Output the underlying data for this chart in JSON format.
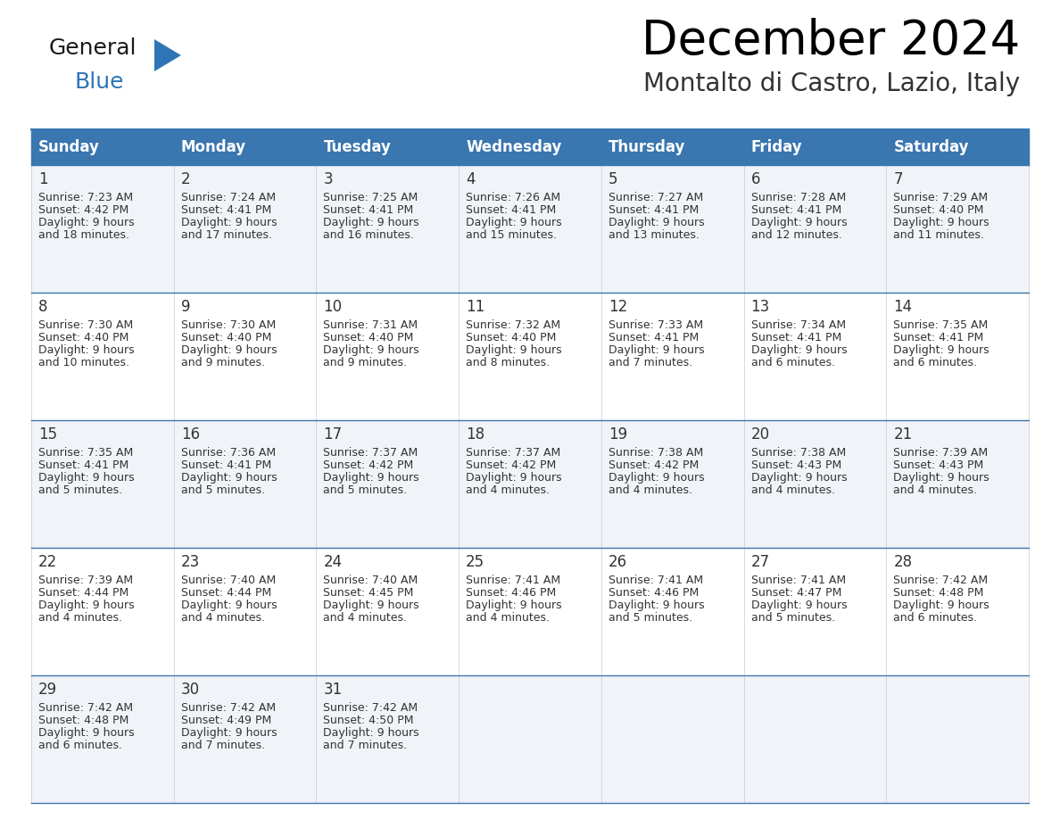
{
  "title": "December 2024",
  "subtitle": "Montalto di Castro, Lazio, Italy",
  "header_color": "#3A76B0",
  "header_text_color": "#FFFFFF",
  "border_color": "#3A76B0",
  "text_color": "#333333",
  "days_of_week": [
    "Sunday",
    "Monday",
    "Tuesday",
    "Wednesday",
    "Thursday",
    "Friday",
    "Saturday"
  ],
  "row_bg_colors": [
    "#F0F4F8",
    "#FFFFFF",
    "#F0F4F8",
    "#FFFFFF",
    "#F0F4F8"
  ],
  "calendar_data": [
    [
      {
        "day": 1,
        "sunrise": "7:23 AM",
        "sunset": "4:42 PM",
        "daylight": "9 hours and 18 minutes"
      },
      {
        "day": 2,
        "sunrise": "7:24 AM",
        "sunset": "4:41 PM",
        "daylight": "9 hours and 17 minutes"
      },
      {
        "day": 3,
        "sunrise": "7:25 AM",
        "sunset": "4:41 PM",
        "daylight": "9 hours and 16 minutes"
      },
      {
        "day": 4,
        "sunrise": "7:26 AM",
        "sunset": "4:41 PM",
        "daylight": "9 hours and 15 minutes"
      },
      {
        "day": 5,
        "sunrise": "7:27 AM",
        "sunset": "4:41 PM",
        "daylight": "9 hours and 13 minutes"
      },
      {
        "day": 6,
        "sunrise": "7:28 AM",
        "sunset": "4:41 PM",
        "daylight": "9 hours and 12 minutes"
      },
      {
        "day": 7,
        "sunrise": "7:29 AM",
        "sunset": "4:40 PM",
        "daylight": "9 hours and 11 minutes"
      }
    ],
    [
      {
        "day": 8,
        "sunrise": "7:30 AM",
        "sunset": "4:40 PM",
        "daylight": "9 hours and 10 minutes"
      },
      {
        "day": 9,
        "sunrise": "7:30 AM",
        "sunset": "4:40 PM",
        "daylight": "9 hours and 9 minutes"
      },
      {
        "day": 10,
        "sunrise": "7:31 AM",
        "sunset": "4:40 PM",
        "daylight": "9 hours and 9 minutes"
      },
      {
        "day": 11,
        "sunrise": "7:32 AM",
        "sunset": "4:40 PM",
        "daylight": "9 hours and 8 minutes"
      },
      {
        "day": 12,
        "sunrise": "7:33 AM",
        "sunset": "4:41 PM",
        "daylight": "9 hours and 7 minutes"
      },
      {
        "day": 13,
        "sunrise": "7:34 AM",
        "sunset": "4:41 PM",
        "daylight": "9 hours and 6 minutes"
      },
      {
        "day": 14,
        "sunrise": "7:35 AM",
        "sunset": "4:41 PM",
        "daylight": "9 hours and 6 minutes"
      }
    ],
    [
      {
        "day": 15,
        "sunrise": "7:35 AM",
        "sunset": "4:41 PM",
        "daylight": "9 hours and 5 minutes"
      },
      {
        "day": 16,
        "sunrise": "7:36 AM",
        "sunset": "4:41 PM",
        "daylight": "9 hours and 5 minutes"
      },
      {
        "day": 17,
        "sunrise": "7:37 AM",
        "sunset": "4:42 PM",
        "daylight": "9 hours and 5 minutes"
      },
      {
        "day": 18,
        "sunrise": "7:37 AM",
        "sunset": "4:42 PM",
        "daylight": "9 hours and 4 minutes"
      },
      {
        "day": 19,
        "sunrise": "7:38 AM",
        "sunset": "4:42 PM",
        "daylight": "9 hours and 4 minutes"
      },
      {
        "day": 20,
        "sunrise": "7:38 AM",
        "sunset": "4:43 PM",
        "daylight": "9 hours and 4 minutes"
      },
      {
        "day": 21,
        "sunrise": "7:39 AM",
        "sunset": "4:43 PM",
        "daylight": "9 hours and 4 minutes"
      }
    ],
    [
      {
        "day": 22,
        "sunrise": "7:39 AM",
        "sunset": "4:44 PM",
        "daylight": "9 hours and 4 minutes"
      },
      {
        "day": 23,
        "sunrise": "7:40 AM",
        "sunset": "4:44 PM",
        "daylight": "9 hours and 4 minutes"
      },
      {
        "day": 24,
        "sunrise": "7:40 AM",
        "sunset": "4:45 PM",
        "daylight": "9 hours and 4 minutes"
      },
      {
        "day": 25,
        "sunrise": "7:41 AM",
        "sunset": "4:46 PM",
        "daylight": "9 hours and 4 minutes"
      },
      {
        "day": 26,
        "sunrise": "7:41 AM",
        "sunset": "4:46 PM",
        "daylight": "9 hours and 5 minutes"
      },
      {
        "day": 27,
        "sunrise": "7:41 AM",
        "sunset": "4:47 PM",
        "daylight": "9 hours and 5 minutes"
      },
      {
        "day": 28,
        "sunrise": "7:42 AM",
        "sunset": "4:48 PM",
        "daylight": "9 hours and 6 minutes"
      }
    ],
    [
      {
        "day": 29,
        "sunrise": "7:42 AM",
        "sunset": "4:48 PM",
        "daylight": "9 hours and 6 minutes"
      },
      {
        "day": 30,
        "sunrise": "7:42 AM",
        "sunset": "4:49 PM",
        "daylight": "9 hours and 7 minutes"
      },
      {
        "day": 31,
        "sunrise": "7:42 AM",
        "sunset": "4:50 PM",
        "daylight": "9 hours and 7 minutes"
      },
      null,
      null,
      null,
      null
    ]
  ],
  "logo_general_color": "#1a1a1a",
  "logo_blue_color": "#2E75B6",
  "logo_triangle_color": "#2E75B6",
  "title_fontsize": 38,
  "subtitle_fontsize": 20,
  "header_fontsize": 12,
  "day_num_fontsize": 12,
  "cell_fontsize": 9
}
